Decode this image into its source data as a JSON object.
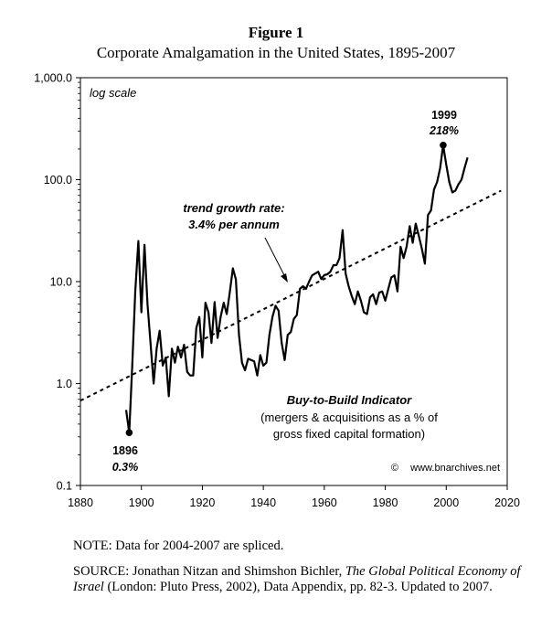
{
  "figure": {
    "label": "Figure 1",
    "title": "Corporate Amalgamation in the United States, 1895-2007"
  },
  "chart_data": {
    "type": "line",
    "y_scale": "log",
    "xlim": [
      1880,
      2020
    ],
    "ylim": [
      0.1,
      1000
    ],
    "x_ticks": [
      "1880",
      "1900",
      "1920",
      "1940",
      "1960",
      "1980",
      "2000",
      "2020"
    ],
    "y_ticks": [
      "0.1",
      "1.0",
      "10.0",
      "100.0",
      "1,000.0"
    ],
    "x_tick_values": [
      1880,
      1900,
      1920,
      1940,
      1960,
      1980,
      2000,
      2020
    ],
    "y_tick_values": [
      0.1,
      1,
      10,
      100,
      1000
    ],
    "grid": false,
    "series": [
      {
        "name": "Buy-to-Build Indicator",
        "style": "solid",
        "color": "#000000",
        "x": [
          1895,
          1896,
          1897,
          1898,
          1899,
          1900,
          1901,
          1902,
          1903,
          1904,
          1905,
          1906,
          1907,
          1908,
          1909,
          1910,
          1911,
          1912,
          1913,
          1914,
          1915,
          1916,
          1917,
          1918,
          1919,
          1920,
          1921,
          1922,
          1923,
          1924,
          1925,
          1926,
          1927,
          1928,
          1929,
          1930,
          1931,
          1932,
          1933,
          1934,
          1935,
          1936,
          1937,
          1938,
          1939,
          1940,
          1941,
          1942,
          1943,
          1944,
          1945,
          1946,
          1947,
          1948,
          1949,
          1950,
          1951,
          1952,
          1953,
          1954,
          1955,
          1956,
          1957,
          1958,
          1959,
          1960,
          1961,
          1962,
          1963,
          1964,
          1965,
          1966,
          1967,
          1968,
          1969,
          1970,
          1971,
          1972,
          1973,
          1974,
          1975,
          1976,
          1977,
          1978,
          1979,
          1980,
          1981,
          1982,
          1983,
          1984,
          1985,
          1986,
          1987,
          1988,
          1989,
          1990,
          1991,
          1992,
          1993,
          1994,
          1995,
          1996,
          1997,
          1998,
          1999,
          2000,
          2001,
          2002,
          2003,
          2004,
          2005,
          2006,
          2007
        ],
        "y": [
          0.55,
          0.33,
          1.5,
          8,
          25,
          5,
          23,
          6,
          2.5,
          1.0,
          2.2,
          3.3,
          1.5,
          1.8,
          0.75,
          2.2,
          1.6,
          2.3,
          1.8,
          2.4,
          1.3,
          1.2,
          1.2,
          3.5,
          4.5,
          1.8,
          6.2,
          5,
          2.5,
          6.3,
          2.8,
          4.5,
          6.2,
          4.8,
          7.8,
          13.5,
          10.5,
          3,
          1.6,
          1.35,
          1.75,
          1.7,
          1.65,
          1.2,
          1.9,
          1.5,
          1.6,
          3,
          4.5,
          5.8,
          5.2,
          2.5,
          1.7,
          3,
          3.2,
          4.3,
          4.7,
          8.5,
          9,
          8.5,
          10,
          11.5,
          12,
          12.5,
          10.6,
          11.6,
          11.8,
          12.5,
          14.5,
          14.5,
          17,
          32,
          12,
          9,
          7.2,
          6,
          8,
          6.5,
          5,
          4.8,
          7,
          7.5,
          6,
          7.8,
          8,
          6.5,
          8.5,
          11,
          11.5,
          8,
          22,
          17,
          22,
          35,
          24,
          37,
          28,
          21,
          15,
          45,
          50,
          80,
          95,
          130,
          218,
          140,
          95,
          75,
          78,
          90,
          100,
          130,
          165
        ]
      },
      {
        "name": "trend growth rate",
        "style": "dashed",
        "color": "#000000",
        "x": [
          1880,
          2018
        ],
        "y": [
          0.68,
          78
        ]
      }
    ],
    "annotations": {
      "log_scale": "log scale",
      "trend_line1": "trend growth rate:",
      "trend_line2": "3.4% per annum",
      "indicator_title": "Buy-to-Build Indicator",
      "indicator_desc1": "(mergers & acquisitions as a % of",
      "indicator_desc2": "gross fixed capital formation)",
      "watermark": "www.bnarchives.net",
      "copyright_symbol": "©",
      "min_year": "1896",
      "min_value": "0.3%",
      "max_year": "1999",
      "max_value": "218%"
    },
    "markers": [
      {
        "x": 1896,
        "y": 0.33
      },
      {
        "x": 1999,
        "y": 218
      }
    ]
  },
  "note": "NOTE: Data for 2004-2007 are spliced.",
  "source": {
    "prefix": "SOURCE: Jonathan Nitzan and Shimshon Bichler, ",
    "book": "The Global Political Economy of Israel",
    "suffix": " (London: Pluto Press, 2002), Data Appendix, pp. 82-3. Updated to 2007."
  }
}
